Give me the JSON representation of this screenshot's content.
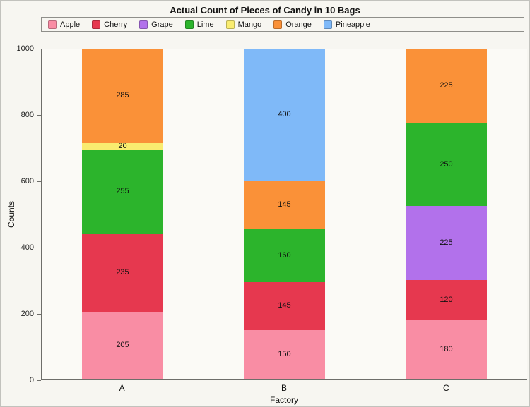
{
  "chart_data": {
    "type": "bar",
    "stacked": true,
    "title": "Actual Count of Pieces of Candy in 10 Bags",
    "xlabel": "Factory",
    "ylabel": "Counts",
    "categories": [
      "A",
      "B",
      "C"
    ],
    "series": [
      {
        "name": "Apple",
        "color": "#F98DA4",
        "values": [
          205,
          150,
          180
        ]
      },
      {
        "name": "Cherry",
        "color": "#E6384F",
        "values": [
          235,
          145,
          120
        ]
      },
      {
        "name": "Grape",
        "color": "#B271EB",
        "values": [
          0,
          0,
          225
        ]
      },
      {
        "name": "Lime",
        "color": "#2CB42C",
        "values": [
          255,
          160,
          250
        ]
      },
      {
        "name": "Mango",
        "color": "#F9EC70",
        "values": [
          20,
          0,
          0
        ]
      },
      {
        "name": "Orange",
        "color": "#FA9138",
        "values": [
          285,
          145,
          225
        ]
      },
      {
        "name": "Pineapple",
        "color": "#7FB9F8",
        "values": [
          0,
          400,
          0
        ]
      }
    ],
    "ylim": [
      0,
      1000
    ],
    "yticks": [
      0,
      200,
      400,
      600,
      800,
      1000
    ],
    "legend_position": "top",
    "grid": false,
    "background": "#F7F6F1"
  }
}
